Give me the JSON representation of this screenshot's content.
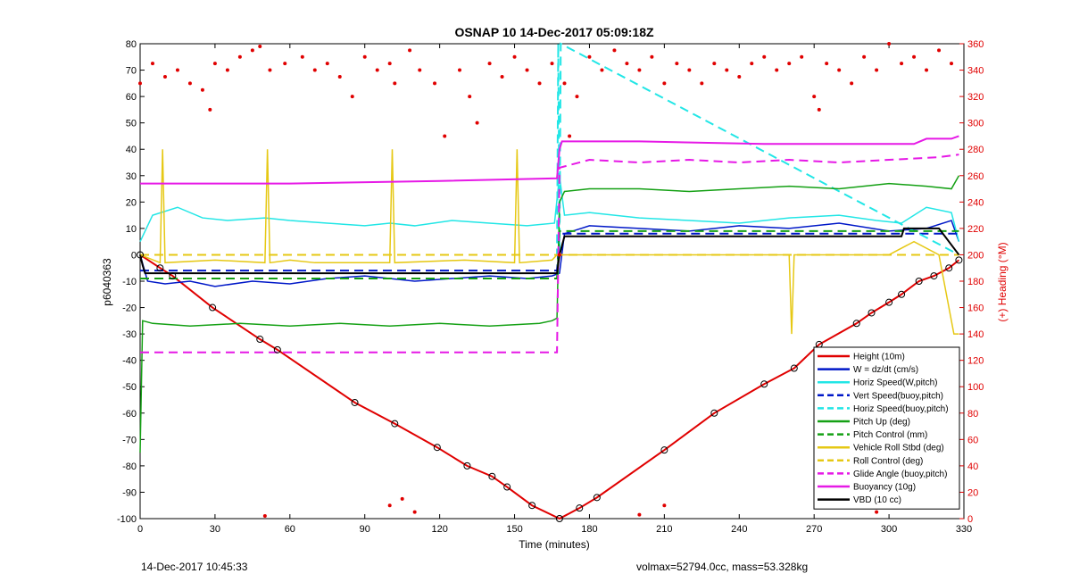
{
  "footer": {
    "left": "14-Dec-2017 10:45:33",
    "right": "volmax=52794.0cc, mass=53.328kg"
  },
  "chart_data": {
    "type": "line",
    "title": "OSNAP 10 14-Dec-2017 05:09:18Z",
    "xlabel": "Time (minutes)",
    "ylabel": "p6040363",
    "y2label": "(+) Heading (°M)",
    "xlim": [
      0,
      330
    ],
    "ylim": [
      -100,
      80
    ],
    "y2lim": [
      0,
      360
    ],
    "xticks": [
      0,
      30,
      60,
      90,
      120,
      150,
      180,
      210,
      240,
      270,
      300,
      330
    ],
    "yticks": [
      -100,
      -90,
      -80,
      -70,
      -60,
      -50,
      -40,
      -30,
      -20,
      -10,
      0,
      10,
      20,
      30,
      40,
      50,
      60,
      70,
      80
    ],
    "y2ticks": [
      0,
      20,
      40,
      60,
      80,
      100,
      120,
      140,
      160,
      180,
      200,
      220,
      240,
      260,
      280,
      300,
      320,
      340,
      360
    ],
    "grid": false,
    "legend_position": "bottom-right",
    "series": [
      {
        "name": "Height (10m)",
        "color": "#e00000",
        "style": "solid",
        "width": 2,
        "x": [
          0,
          8,
          13,
          29,
          48,
          55,
          86,
          102,
          119,
          131,
          141,
          147,
          157,
          168,
          176,
          183,
          210,
          230,
          250,
          262,
          272,
          287,
          293,
          300,
          305,
          312,
          318,
          324,
          328
        ],
        "y": [
          0,
          -5,
          -8,
          -20,
          -32,
          -36,
          -56,
          -64,
          -73,
          -80,
          -84,
          -88,
          -95,
          -100,
          -96,
          -92,
          -74,
          -60,
          -49,
          -43,
          -34,
          -26,
          -22,
          -18,
          -15,
          -10,
          -8,
          -5,
          -2
        ]
      },
      {
        "name": "W = dz/dt (cm/s)",
        "color": "#0018c8",
        "style": "solid",
        "width": 1.5,
        "x": [
          0,
          3,
          10,
          20,
          30,
          45,
          60,
          75,
          90,
          100,
          110,
          125,
          140,
          155,
          165,
          168,
          170,
          180,
          200,
          220,
          240,
          260,
          280,
          300,
          315,
          325,
          328
        ],
        "y": [
          0,
          -10,
          -11,
          -10,
          -12,
          -10,
          -11,
          -9,
          -8,
          -9,
          -10,
          -9,
          -8,
          -9,
          -8,
          -7,
          8,
          11,
          10,
          9,
          11,
          10,
          12,
          9,
          10,
          13,
          5
        ]
      },
      {
        "name": "Horiz Speed(W,pitch)",
        "color": "#22e6e6",
        "style": "solid",
        "width": 1.5,
        "x": [
          0,
          5,
          15,
          25,
          35,
          50,
          60,
          75,
          90,
          100,
          110,
          125,
          140,
          155,
          166,
          168,
          170,
          180,
          200,
          220,
          240,
          260,
          280,
          295,
          305,
          315,
          325,
          328
        ],
        "y": [
          5,
          15,
          18,
          14,
          13,
          14,
          13,
          12,
          11,
          12,
          11,
          13,
          12,
          11,
          12,
          30,
          15,
          16,
          14,
          13,
          12,
          14,
          15,
          13,
          12,
          18,
          16,
          5
        ]
      },
      {
        "name": "Vert Speed(buoy,pitch)",
        "color": "#0018c8",
        "style": "dashed",
        "width": 2,
        "x": [
          0,
          167,
          168,
          328
        ],
        "y": [
          -6,
          -6,
          8,
          8
        ]
      },
      {
        "name": "Horiz Speed(buoy,pitch)",
        "color": "#22e6e6",
        "style": "dashed",
        "width": 2,
        "x": [
          0,
          167,
          167.5,
          168,
          168.5,
          328
        ],
        "y": [
          0,
          0,
          80,
          0,
          80,
          0
        ]
      },
      {
        "name": "Pitch Up (deg)",
        "color": "#14a014",
        "style": "solid",
        "width": 1.5,
        "x": [
          0,
          1,
          5,
          20,
          40,
          60,
          80,
          100,
          120,
          140,
          160,
          165,
          167,
          168,
          170,
          180,
          200,
          220,
          240,
          260,
          280,
          300,
          315,
          325,
          328
        ],
        "y": [
          -75,
          -25,
          -26,
          -27,
          -26,
          -27,
          -26,
          -27,
          -26,
          -27,
          -26,
          -25,
          -24,
          20,
          24,
          25,
          25,
          24,
          25,
          26,
          25,
          27,
          26,
          25,
          30
        ]
      },
      {
        "name": "Pitch Control (mm)",
        "color": "#14a014",
        "style": "dashed",
        "width": 2,
        "x": [
          0,
          167,
          168,
          328
        ],
        "y": [
          -9,
          -9,
          9,
          9
        ]
      },
      {
        "name": "Vehicle Roll Stbd (deg)",
        "color": "#e6c814",
        "style": "solid",
        "width": 1.5,
        "x": [
          0,
          8,
          9,
          10,
          30,
          50,
          51,
          52,
          60,
          70,
          100,
          101,
          102,
          130,
          150,
          151,
          152,
          165,
          167,
          168,
          180,
          200,
          220,
          240,
          260,
          261,
          262,
          280,
          300,
          310,
          320,
          326,
          328
        ],
        "y": [
          0,
          -3,
          40,
          -3,
          -2,
          -3,
          40,
          -3,
          -2,
          -3,
          -3,
          40,
          -3,
          -2,
          -3,
          40,
          -3,
          -2,
          0,
          0,
          0,
          0,
          0,
          0,
          0,
          -30,
          0,
          0,
          0,
          5,
          0,
          -30,
          -30
        ]
      },
      {
        "name": "Roll Control (deg)",
        "color": "#e6c814",
        "style": "dashed",
        "width": 2,
        "x": [
          0,
          328
        ],
        "y": [
          0,
          0
        ]
      },
      {
        "name": "Glide Angle (buoy,pitch)",
        "color": "#e619e6",
        "style": "dashed",
        "width": 2,
        "x": [
          0,
          167,
          168,
          180,
          200,
          220,
          240,
          260,
          280,
          300,
          320,
          328
        ],
        "y": [
          -37,
          -37,
          33,
          36,
          35,
          36,
          35,
          36,
          35,
          36,
          37,
          38
        ]
      },
      {
        "name": "Buoyancy (10g)",
        "color": "#e619e6",
        "style": "solid",
        "width": 2,
        "x": [
          0,
          60,
          120,
          167,
          168,
          169,
          200,
          250,
          300,
          310,
          315,
          325,
          328
        ],
        "y": [
          27,
          27,
          28,
          29,
          40,
          43,
          43,
          42,
          42,
          42,
          44,
          44,
          45
        ]
      },
      {
        "name": "VBD (10 cc)",
        "color": "#000000",
        "style": "solid",
        "width": 2,
        "x": [
          0,
          1,
          2,
          167,
          168,
          170,
          305,
          306,
          320,
          328
        ],
        "y": [
          0,
          -4,
          -7,
          -7,
          0,
          7,
          7,
          10,
          10,
          0
        ]
      },
      {
        "name": "(+) Heading (°M)",
        "color": "#e00000",
        "style": "dots",
        "axis": "right",
        "x": [
          0,
          5,
          10,
          15,
          20,
          25,
          28,
          30,
          35,
          40,
          45,
          48,
          52,
          58,
          65,
          70,
          75,
          80,
          85,
          90,
          95,
          100,
          102,
          108,
          112,
          118,
          122,
          128,
          132,
          135,
          140,
          145,
          150,
          155,
          160,
          165,
          168,
          170,
          172,
          175,
          180,
          185,
          190,
          195,
          200,
          205,
          210,
          215,
          220,
          225,
          230,
          235,
          240,
          245,
          250,
          255,
          260,
          265,
          270,
          272,
          275,
          280,
          285,
          290,
          295,
          300,
          305,
          310,
          315,
          320,
          325,
          50,
          100,
          105,
          110,
          200,
          210,
          285,
          295,
          305,
          310
        ],
        "y": [
          330,
          345,
          335,
          340,
          330,
          325,
          310,
          345,
          340,
          350,
          355,
          358,
          340,
          345,
          350,
          340,
          345,
          335,
          320,
          350,
          340,
          345,
          330,
          355,
          340,
          330,
          290,
          340,
          320,
          300,
          345,
          335,
          350,
          340,
          330,
          345,
          200,
          330,
          290,
          320,
          350,
          340,
          355,
          345,
          340,
          350,
          330,
          345,
          340,
          330,
          345,
          340,
          335,
          345,
          350,
          340,
          345,
          350,
          320,
          310,
          345,
          340,
          330,
          350,
          340,
          360,
          345,
          350,
          340,
          355,
          345,
          2,
          10,
          15,
          5,
          3,
          10,
          12,
          5,
          10,
          15
        ]
      }
    ]
  }
}
